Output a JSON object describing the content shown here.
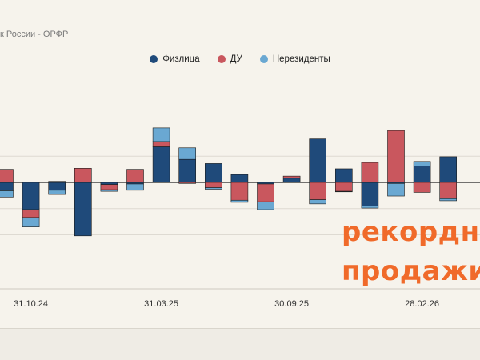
{
  "source": "к России - ОРФР",
  "overlay": {
    "line1": "рекордн",
    "line2": "продажи"
  },
  "colors": {
    "individuals": "#1f4a7a",
    "trust": "#c9575e",
    "nonresidents": "#6aa8d2",
    "background": "#f6f3ec",
    "overlay": "#f06a2a"
  },
  "chart_data": {
    "type": "bar",
    "stacked": true,
    "categories": [
      "",
      "31.10.24",
      "",
      "",
      "",
      "",
      "31.03.25",
      "",
      "",
      "",
      "",
      "30.09.25",
      "",
      "",
      "",
      "",
      "28.02.26",
      ""
    ],
    "series": [
      {
        "name": "Физлица",
        "color": "#1f4a7a",
        "values": [
          -1.6,
          -5.2,
          -1.5,
          -10.2,
          -0.4,
          -0.3,
          6.8,
          4.4,
          3.6,
          1.5,
          -0.3,
          0.8,
          8.3,
          2.6,
          -4.5,
          -0.2,
          3.1,
          4.9
        ]
      },
      {
        "name": "ДУ",
        "color": "#c9575e",
        "values": [
          2.5,
          -1.5,
          0.2,
          2.7,
          -1.0,
          2.5,
          1.0,
          -0.2,
          -1.0,
          -3.4,
          -3.4,
          0.4,
          -3.3,
          -1.7,
          3.8,
          9.9,
          -1.9,
          -3.1
        ]
      },
      {
        "name": "Нерезиденты",
        "color": "#6aa8d2",
        "values": [
          -1.2,
          -1.8,
          -0.8,
          0,
          -0.3,
          -1.2,
          2.6,
          2.2,
          -0.3,
          -0.4,
          -1.5,
          0,
          -0.8,
          -0.1,
          -0.4,
          -2.4,
          0.9,
          -0.4
        ]
      }
    ],
    "ylim": [
      -13,
      10.5
    ],
    "grid": true,
    "legend": "top-center",
    "labeled_ticks": [
      "31.10.24",
      "31.03.25",
      "30.09.25",
      "28.02.26"
    ]
  }
}
